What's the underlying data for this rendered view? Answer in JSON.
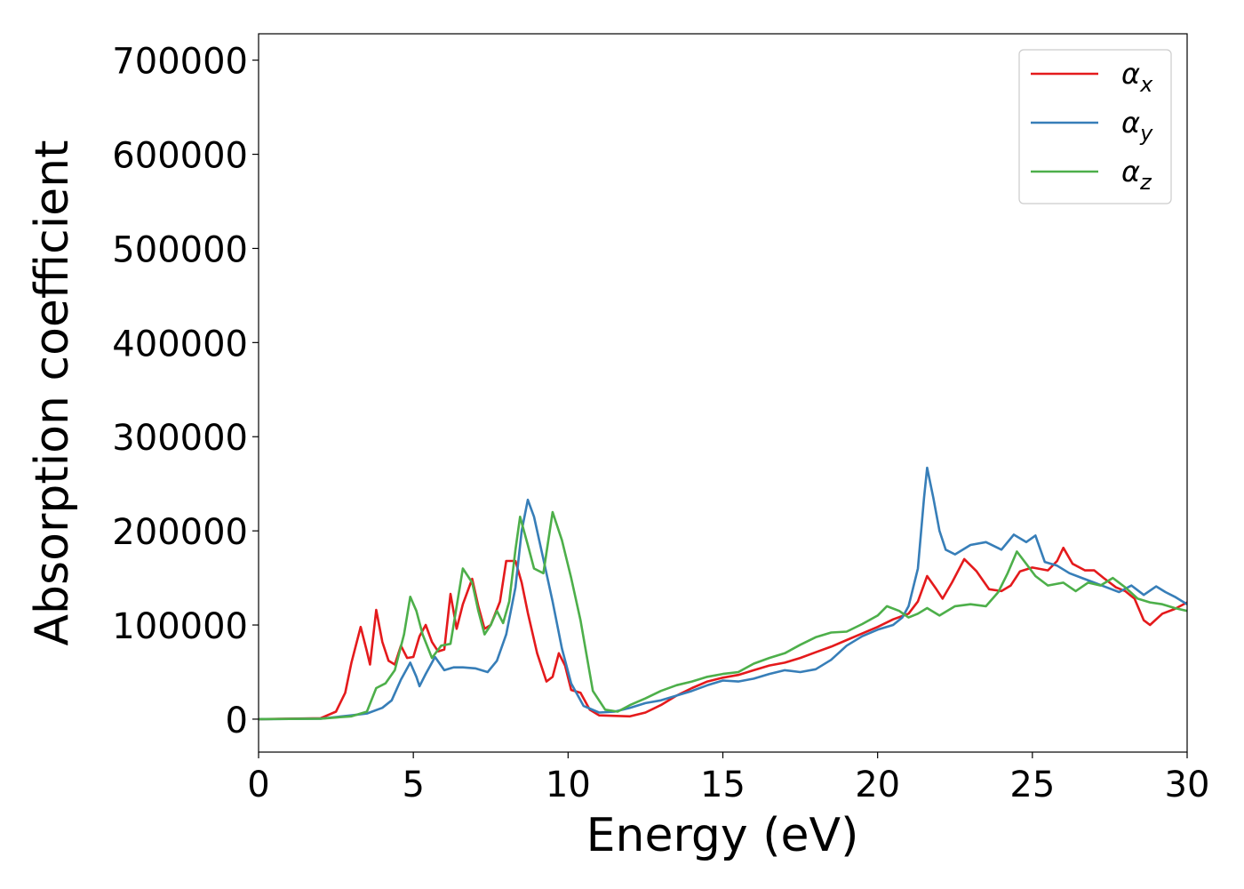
{
  "chart_data": {
    "type": "line",
    "title": "",
    "xlabel": "Energy (eV)",
    "ylabel": "Absorption coefficient",
    "xlim": [
      0,
      30
    ],
    "ylim": [
      -35000,
      728000
    ],
    "xticks": [
      0,
      5,
      10,
      15,
      20,
      25,
      30
    ],
    "xtick_labels": [
      "0",
      "5",
      "10",
      "15",
      "20",
      "25",
      "30"
    ],
    "yticks": [
      0,
      100000,
      200000,
      300000,
      400000,
      500000,
      600000,
      700000
    ],
    "ytick_labels": [
      "0",
      "100000",
      "200000",
      "300000",
      "400000",
      "500000",
      "600000",
      "700000"
    ],
    "grid": false,
    "legend_position": "top-right",
    "series": [
      {
        "name": "α",
        "subscript": "x",
        "color": "#e41a1c",
        "points": [
          [
            0,
            0
          ],
          [
            2,
            1000
          ],
          [
            2.5,
            8000
          ],
          [
            2.8,
            28000
          ],
          [
            3.0,
            60000
          ],
          [
            3.3,
            98000
          ],
          [
            3.5,
            72000
          ],
          [
            3.6,
            58000
          ],
          [
            3.8,
            116000
          ],
          [
            4.0,
            82000
          ],
          [
            4.2,
            62000
          ],
          [
            4.4,
            58000
          ],
          [
            4.6,
            78000
          ],
          [
            4.8,
            65000
          ],
          [
            5.0,
            66000
          ],
          [
            5.2,
            88000
          ],
          [
            5.4,
            100000
          ],
          [
            5.6,
            82000
          ],
          [
            5.8,
            72000
          ],
          [
            6.0,
            74000
          ],
          [
            6.2,
            133000
          ],
          [
            6.4,
            96000
          ],
          [
            6.6,
            122000
          ],
          [
            6.9,
            149000
          ],
          [
            7.1,
            120000
          ],
          [
            7.3,
            96000
          ],
          [
            7.5,
            100000
          ],
          [
            7.8,
            125000
          ],
          [
            8.0,
            168000
          ],
          [
            8.3,
            168000
          ],
          [
            8.5,
            145000
          ],
          [
            8.7,
            113000
          ],
          [
            9.0,
            70000
          ],
          [
            9.3,
            40000
          ],
          [
            9.5,
            45000
          ],
          [
            9.7,
            70000
          ],
          [
            9.9,
            57000
          ],
          [
            10.1,
            31000
          ],
          [
            10.4,
            28000
          ],
          [
            10.7,
            10000
          ],
          [
            11,
            4000
          ],
          [
            12,
            3000
          ],
          [
            12.5,
            7000
          ],
          [
            13,
            15000
          ],
          [
            13.5,
            25000
          ],
          [
            14,
            33000
          ],
          [
            14.5,
            40000
          ],
          [
            15,
            44000
          ],
          [
            15.5,
            47000
          ],
          [
            16,
            52000
          ],
          [
            16.5,
            57000
          ],
          [
            17,
            60000
          ],
          [
            17.5,
            65000
          ],
          [
            18,
            71000
          ],
          [
            18.5,
            77000
          ],
          [
            19,
            84000
          ],
          [
            19.5,
            91000
          ],
          [
            20,
            98000
          ],
          [
            20.5,
            106000
          ],
          [
            21,
            112000
          ],
          [
            21.3,
            125000
          ],
          [
            21.6,
            152000
          ],
          [
            21.9,
            138000
          ],
          [
            22.1,
            128000
          ],
          [
            22.4,
            145000
          ],
          [
            22.8,
            170000
          ],
          [
            23.2,
            157000
          ],
          [
            23.6,
            138000
          ],
          [
            24,
            136000
          ],
          [
            24.3,
            142000
          ],
          [
            24.6,
            157000
          ],
          [
            25,
            161000
          ],
          [
            25.5,
            158000
          ],
          [
            25.8,
            168000
          ],
          [
            26,
            182000
          ],
          [
            26.3,
            165000
          ],
          [
            26.7,
            158000
          ],
          [
            27,
            158000
          ],
          [
            27.3,
            150000
          ],
          [
            27.7,
            140000
          ],
          [
            28,
            136000
          ],
          [
            28.3,
            128000
          ],
          [
            28.6,
            105000
          ],
          [
            28.8,
            100000
          ],
          [
            29.2,
            112000
          ],
          [
            29.6,
            117000
          ],
          [
            30,
            124000
          ]
        ]
      },
      {
        "name": "α",
        "subscript": "y",
        "color": "#377eb8",
        "points": [
          [
            0,
            0
          ],
          [
            2,
            500
          ],
          [
            3,
            4000
          ],
          [
            3.5,
            6000
          ],
          [
            4,
            12000
          ],
          [
            4.3,
            20000
          ],
          [
            4.6,
            42000
          ],
          [
            4.9,
            60000
          ],
          [
            5.1,
            45000
          ],
          [
            5.2,
            35000
          ],
          [
            5.4,
            48000
          ],
          [
            5.7,
            66000
          ],
          [
            6.0,
            52000
          ],
          [
            6.3,
            55000
          ],
          [
            6.6,
            55000
          ],
          [
            7.0,
            54000
          ],
          [
            7.4,
            50000
          ],
          [
            7.7,
            62000
          ],
          [
            8.0,
            90000
          ],
          [
            8.3,
            140000
          ],
          [
            8.5,
            200000
          ],
          [
            8.7,
            233000
          ],
          [
            8.9,
            215000
          ],
          [
            9.2,
            170000
          ],
          [
            9.5,
            125000
          ],
          [
            9.8,
            75000
          ],
          [
            10.1,
            38000
          ],
          [
            10.5,
            14000
          ],
          [
            11,
            7000
          ],
          [
            11.5,
            8000
          ],
          [
            12,
            12000
          ],
          [
            12.5,
            17000
          ],
          [
            13,
            20000
          ],
          [
            13.5,
            25000
          ],
          [
            14,
            30000
          ],
          [
            14.5,
            36000
          ],
          [
            15,
            41000
          ],
          [
            15.5,
            40000
          ],
          [
            16,
            43000
          ],
          [
            16.5,
            48000
          ],
          [
            17,
            52000
          ],
          [
            17.5,
            50000
          ],
          [
            18,
            53000
          ],
          [
            18.5,
            63000
          ],
          [
            19,
            78000
          ],
          [
            19.5,
            88000
          ],
          [
            20,
            95000
          ],
          [
            20.5,
            100000
          ],
          [
            20.8,
            108000
          ],
          [
            21,
            120000
          ],
          [
            21.3,
            160000
          ],
          [
            21.5,
            235000
          ],
          [
            21.6,
            267000
          ],
          [
            21.8,
            235000
          ],
          [
            22.0,
            200000
          ],
          [
            22.2,
            180000
          ],
          [
            22.5,
            175000
          ],
          [
            23,
            185000
          ],
          [
            23.5,
            188000
          ],
          [
            24,
            180000
          ],
          [
            24.4,
            196000
          ],
          [
            24.8,
            188000
          ],
          [
            25.1,
            195000
          ],
          [
            25.4,
            167000
          ],
          [
            25.8,
            163000
          ],
          [
            26.2,
            155000
          ],
          [
            26.6,
            150000
          ],
          [
            27,
            145000
          ],
          [
            27.4,
            140000
          ],
          [
            27.8,
            135000
          ],
          [
            28.2,
            142000
          ],
          [
            28.6,
            132000
          ],
          [
            29.0,
            141000
          ],
          [
            29.3,
            135000
          ],
          [
            29.6,
            130000
          ],
          [
            30,
            122000
          ]
        ]
      },
      {
        "name": "α",
        "subscript": "z",
        "color": "#4daf4a",
        "points": [
          [
            0,
            0
          ],
          [
            2,
            500
          ],
          [
            3,
            3000
          ],
          [
            3.5,
            8000
          ],
          [
            3.8,
            33000
          ],
          [
            4.1,
            38000
          ],
          [
            4.4,
            52000
          ],
          [
            4.7,
            90000
          ],
          [
            4.9,
            130000
          ],
          [
            5.1,
            115000
          ],
          [
            5.3,
            90000
          ],
          [
            5.6,
            65000
          ],
          [
            5.9,
            78000
          ],
          [
            6.2,
            80000
          ],
          [
            6.6,
            160000
          ],
          [
            6.9,
            145000
          ],
          [
            7.1,
            115000
          ],
          [
            7.3,
            90000
          ],
          [
            7.5,
            100000
          ],
          [
            7.7,
            115000
          ],
          [
            7.9,
            102000
          ],
          [
            8.1,
            125000
          ],
          [
            8.3,
            180000
          ],
          [
            8.45,
            215000
          ],
          [
            8.7,
            185000
          ],
          [
            8.9,
            160000
          ],
          [
            9.2,
            155000
          ],
          [
            9.5,
            220000
          ],
          [
            9.8,
            190000
          ],
          [
            10.1,
            150000
          ],
          [
            10.4,
            105000
          ],
          [
            10.8,
            30000
          ],
          [
            11.2,
            10000
          ],
          [
            11.6,
            8000
          ],
          [
            12,
            15000
          ],
          [
            12.5,
            22000
          ],
          [
            13,
            30000
          ],
          [
            13.5,
            36000
          ],
          [
            14,
            40000
          ],
          [
            14.5,
            45000
          ],
          [
            15,
            48000
          ],
          [
            15.5,
            50000
          ],
          [
            16,
            59000
          ],
          [
            16.5,
            65000
          ],
          [
            17,
            70000
          ],
          [
            17.5,
            79000
          ],
          [
            18,
            87000
          ],
          [
            18.5,
            92000
          ],
          [
            19,
            93000
          ],
          [
            19.5,
            101000
          ],
          [
            20,
            110000
          ],
          [
            20.3,
            120000
          ],
          [
            20.7,
            115000
          ],
          [
            21,
            108000
          ],
          [
            21.3,
            112000
          ],
          [
            21.6,
            118000
          ],
          [
            22,
            110000
          ],
          [
            22.5,
            120000
          ],
          [
            23,
            122000
          ],
          [
            23.5,
            120000
          ],
          [
            23.9,
            135000
          ],
          [
            24.2,
            155000
          ],
          [
            24.5,
            178000
          ],
          [
            24.8,
            165000
          ],
          [
            25.1,
            152000
          ],
          [
            25.5,
            142000
          ],
          [
            26,
            145000
          ],
          [
            26.4,
            136000
          ],
          [
            26.8,
            145000
          ],
          [
            27.2,
            142000
          ],
          [
            27.6,
            150000
          ],
          [
            28,
            140000
          ],
          [
            28.4,
            128000
          ],
          [
            28.8,
            124000
          ],
          [
            29.2,
            122000
          ],
          [
            29.6,
            118000
          ],
          [
            30,
            115000
          ]
        ]
      }
    ]
  }
}
